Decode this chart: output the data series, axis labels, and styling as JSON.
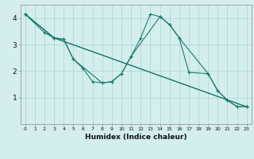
{
  "xlabel": "Humidex (Indice chaleur)",
  "bg_color": "#d4eeee",
  "line_color": "#1a7a6a",
  "grid_color": "#aad4d4",
  "xlim": [
    -0.5,
    23.5
  ],
  "ylim": [
    0.0,
    4.5
  ],
  "yticks": [
    1,
    2,
    3,
    4
  ],
  "xticks": [
    0,
    1,
    2,
    3,
    4,
    5,
    6,
    7,
    8,
    9,
    10,
    11,
    12,
    13,
    14,
    15,
    16,
    17,
    18,
    19,
    20,
    21,
    22,
    23
  ],
  "series": [
    {
      "x": [
        0,
        2,
        3,
        4,
        5,
        6,
        7,
        8,
        9,
        10,
        11,
        12,
        13,
        14,
        15,
        16,
        17,
        19,
        20,
        21,
        22,
        23
      ],
      "y": [
        4.15,
        3.45,
        3.25,
        3.2,
        2.45,
        2.1,
        1.6,
        1.55,
        1.6,
        1.9,
        2.55,
        3.25,
        4.15,
        4.05,
        3.75,
        3.25,
        1.95,
        1.9,
        1.25,
        0.9,
        0.65,
        0.65
      ]
    },
    {
      "x": [
        0,
        3,
        4,
        5,
        8,
        9,
        10,
        11,
        14,
        15,
        16,
        19,
        20,
        21,
        22,
        23
      ],
      "y": [
        4.15,
        3.25,
        3.2,
        2.45,
        1.55,
        1.6,
        1.9,
        2.55,
        4.05,
        3.75,
        3.25,
        1.9,
        1.25,
        0.9,
        0.65,
        0.65
      ]
    },
    {
      "x": [
        0,
        3,
        23
      ],
      "y": [
        4.15,
        3.25,
        0.65
      ]
    },
    {
      "x": [
        0,
        3,
        23
      ],
      "y": [
        4.15,
        3.25,
        0.65
      ]
    }
  ]
}
